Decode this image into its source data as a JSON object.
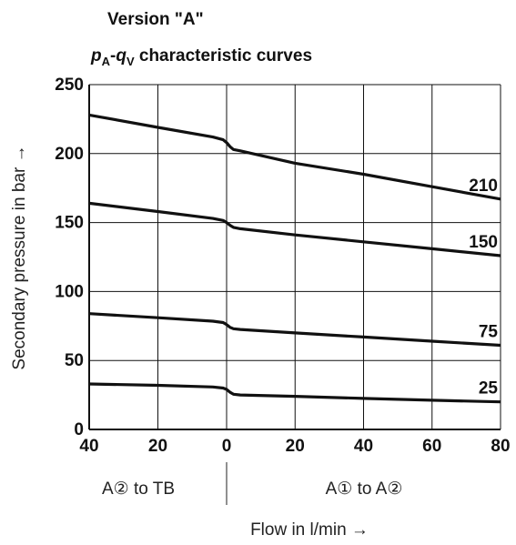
{
  "title": "Version \"A\"",
  "subtitle": {
    "p": "p",
    "p_sub": "A",
    "dash": "-",
    "q": "q",
    "q_sub": "V",
    "rest": " characteristic curves"
  },
  "ylabel": "Secondary pressure in bar →",
  "xlabel": "Flow in l/min →",
  "direction_left": "A② to TB",
  "direction_right": "A① to A②",
  "chart_data": {
    "type": "line",
    "title": "Version \"A\"",
    "subtitle": "pA-qV characteristic curves",
    "xlabel": "Flow in l/min →",
    "ylabel": "Secondary pressure in bar →",
    "x_ticks": [
      {
        "label": "40",
        "value": -40
      },
      {
        "label": "20",
        "value": -20
      },
      {
        "label": "0",
        "value": 0
      },
      {
        "label": "20",
        "value": 20
      },
      {
        "label": "40",
        "value": 40
      },
      {
        "label": "60",
        "value": 60
      },
      {
        "label": "80",
        "value": 80
      }
    ],
    "y_ticks": [
      0,
      50,
      100,
      150,
      200,
      250
    ],
    "xlim": [
      -40,
      80
    ],
    "ylim": [
      0,
      250
    ],
    "grid": true,
    "x_regions": [
      "A② to TB",
      "A① to A②"
    ],
    "series": [
      {
        "name": "210",
        "x": [
          -40,
          -20,
          -4,
          -1,
          0,
          1,
          2,
          4,
          20,
          40,
          60,
          80
        ],
        "y": [
          228,
          219,
          212,
          210,
          208,
          205,
          203,
          202,
          193,
          185,
          176,
          167
        ]
      },
      {
        "name": "150",
        "x": [
          -40,
          -20,
          -4,
          -1,
          0,
          1,
          2,
          4,
          20,
          40,
          60,
          80
        ],
        "y": [
          164,
          158,
          153,
          151.5,
          150,
          148,
          146.5,
          145.5,
          141,
          136,
          131,
          126
        ]
      },
      {
        "name": "75",
        "x": [
          -40,
          -20,
          -4,
          -1,
          0,
          1,
          2,
          4,
          20,
          40,
          60,
          80
        ],
        "y": [
          84,
          81,
          78.5,
          77.5,
          76,
          74,
          73,
          72.5,
          70,
          67,
          64,
          61
        ]
      },
      {
        "name": "25",
        "x": [
          -40,
          -20,
          -4,
          -1,
          0,
          1,
          2,
          4,
          20,
          40,
          60,
          80
        ],
        "y": [
          33,
          32,
          30.8,
          30,
          29,
          27,
          25.5,
          25,
          24,
          22.5,
          21.2,
          20
        ]
      }
    ]
  }
}
